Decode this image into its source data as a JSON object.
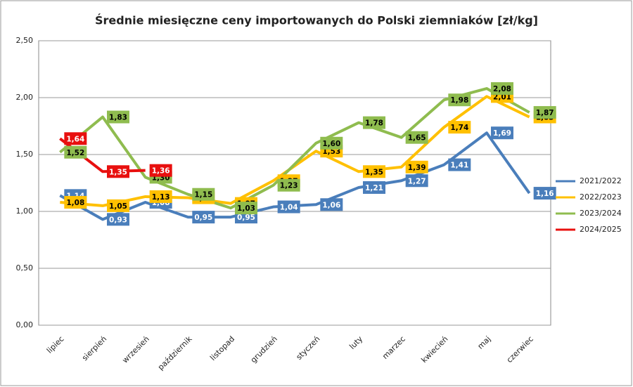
{
  "chart_data": {
    "type": "line",
    "title": "Średnie miesięczne ceny importowanych do Polski ziemniaków  [zł/kg]",
    "categories": [
      "lipiec",
      "sierpień",
      "wrzesień",
      "październik",
      "listopad",
      "grudzień",
      "styczeń",
      "luty",
      "marzec",
      "kwiecień",
      "maj",
      "czerwiec"
    ],
    "ylim": [
      0,
      2.5
    ],
    "yticks": [
      {
        "value": 0,
        "label": "0,00"
      },
      {
        "value": 0.5,
        "label": "0,50"
      },
      {
        "value": 1,
        "label": "1,00"
      },
      {
        "value": 1.5,
        "label": "1,50"
      },
      {
        "value": 2,
        "label": "2,00"
      },
      {
        "value": 2.5,
        "label": "2,50"
      }
    ],
    "grid": true,
    "legend": "right",
    "series": [
      {
        "name": "2021/2022",
        "color": "#4a7ebb",
        "values": [
          1.14,
          0.93,
          1.08,
          0.95,
          0.95,
          1.04,
          1.06,
          1.21,
          1.27,
          1.41,
          1.69,
          1.16
        ],
        "value_labels": [
          "1,14",
          "0,93",
          "1,08",
          "0,95",
          "0,95",
          "1,04",
          "1,06",
          "1,21",
          "1,27",
          "1,41",
          "1,69",
          "1,16"
        ]
      },
      {
        "name": "2022/2023",
        "color": "#ffc000",
        "values": [
          1.08,
          1.05,
          1.13,
          1.12,
          1.07,
          1.27,
          1.53,
          1.35,
          1.39,
          1.74,
          2.01,
          1.83
        ],
        "value_labels": [
          "1,08",
          "1,05",
          "1,13",
          "1,12",
          "1,07",
          "1,27",
          "1,53",
          "1,35",
          "1,39",
          "1,74",
          "2,01",
          "1,83"
        ]
      },
      {
        "name": "2023/2024",
        "color": "#8fbc4f",
        "values": [
          1.52,
          1.83,
          1.3,
          1.15,
          1.03,
          1.23,
          1.6,
          1.78,
          1.65,
          1.98,
          2.08,
          1.87
        ],
        "value_labels": [
          "1,52",
          "1,83",
          "1,30",
          "1,15",
          "1,03",
          "1,23",
          "1,60",
          "1,78",
          "1,65",
          "1,98",
          "2,08",
          "1,87"
        ]
      },
      {
        "name": "2024/2025",
        "color": "#e8100f",
        "values": [
          1.64,
          1.35,
          1.36,
          null,
          null,
          null,
          null,
          null,
          null,
          null,
          null,
          null
        ],
        "value_labels": [
          "1,64",
          "1,35",
          "1,36",
          null,
          null,
          null,
          null,
          null,
          null,
          null,
          null,
          null
        ]
      }
    ]
  }
}
